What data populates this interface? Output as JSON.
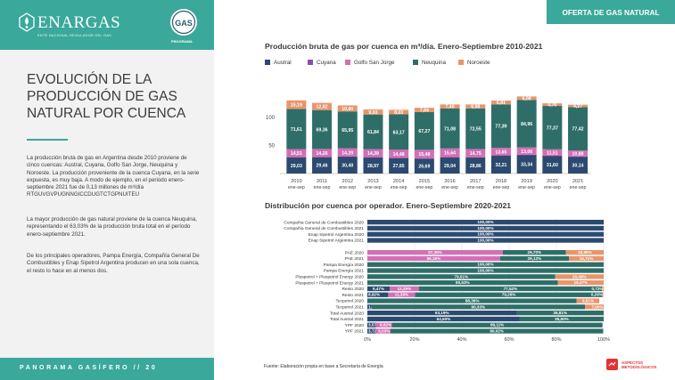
{
  "header": {
    "org_name": "ENARGAS",
    "org_subtitle": "ENTE NACIONAL REGULADOR DEL GAS",
    "seal_text": "GAS",
    "seal_label": "PROGRAMA",
    "section_label": "OFERTA DE GAS NATURAL"
  },
  "left": {
    "title": "EVOLUCIÓN DE LA PRODUCCIÓN DE GAS NATURAL POR CUENCA",
    "paragraphs": [
      "La producción bruta de gas en Argentina desde 2010 proviene de cinco cuencas: Austral, Cuyana, Golfo San Jorge, Neuquina y Noroeste. La producción proveniente de la cuenca Cuyana, en la serie expuesta, es muy baja. A modo de ejemplo, en el periodo enero-septiembre 2021 fue de 0,13 millones de m³/día RTGUVGVPUGNNGICCDUGTCTGPNUITEU",
      "La mayor producción de gas natural proviene de la cuenca Neuquina, representando el 63,03% de la producción bruta total en el período enero-septiembre 2021.",
      "De los principales operadores, Pampa Energía, Compañía General De Combustibles y Enap Sipetrol Argentina producen en una sola cuenca, el resto lo hace en al menos dos."
    ],
    "footer": "PANORAMA GASÍFERO // 20"
  },
  "footer_right": {
    "source": "Fuente: Elaboración propia en base a Secretaría de Energía",
    "help_label": "ASPECTOS METODOLÓGICOS"
  },
  "colors": {
    "teal": "#3aa89a",
    "austral": "#2b4a6f",
    "cuyana": "#8a4fa8",
    "golfo": "#d36fb6",
    "neuquina": "#2f6e68",
    "noroeste": "#e8956c"
  },
  "chart_data": [
    {
      "type": "bar",
      "stacked": true,
      "title": "Producción bruta de gas por cuenca en m³/día. Enero-Septiembre 2010-2021",
      "categories": [
        "2010",
        "2011",
        "2012",
        "2013",
        "2014",
        "2015",
        "2016",
        "2017",
        "2018",
        "2019",
        "2020",
        "2021"
      ],
      "category_sublabel": "ene-sep",
      "y_ticks": [
        "50",
        "100"
      ],
      "ylim": [
        0,
        140
      ],
      "legend_position": "top",
      "series": [
        {
          "name": "Austral",
          "values": [
            29.03,
            29.46,
            30.4,
            28.97,
            27.85,
            26.69,
            29.04,
            28.86,
            32.21,
            33.34,
            31.6,
            30.14
          ],
          "labels": [
            "29,03",
            "29,46",
            "30,40",
            "28,97",
            "27,85",
            "26,69",
            "29,04",
            "28,86",
            "32,21",
            "33,34",
            "31,60",
            "30,14"
          ]
        },
        {
          "name": "Cuyana",
          "values": [
            0.1,
            0.1,
            0.1,
            0.1,
            0.1,
            0.1,
            0.1,
            0.1,
            0.1,
            0.1,
            0.1,
            0.13
          ],
          "labels": []
        },
        {
          "name": "Golfo San Jorge",
          "values": [
            14.51,
            14.26,
            14.29,
            14.39,
            14.48,
            15.48,
            15.64,
            14.75,
            13.65,
            13.06,
            11.51,
            10.88
          ],
          "labels": [
            "14,51",
            "14,26",
            "14,29",
            "14,39",
            "14,48",
            "15,48",
            "15,64",
            "14,75",
            "13,65",
            "13,06",
            "11,51",
            "10,88"
          ]
        },
        {
          "name": "Neuquina",
          "values": [
            71.61,
            69.36,
            65.95,
            61.84,
            63.17,
            67.27,
            71.08,
            72.55,
            77.39,
            84.96,
            77.37,
            77.42
          ],
          "labels": [
            "71,61",
            "69,36",
            "65,95",
            "61,84",
            "63,17",
            "67,27",
            "71,08",
            "72,55",
            "77,39",
            "84,96",
            "77,37",
            "77,42"
          ]
        },
        {
          "name": "Noroeste",
          "values": [
            15.19,
            12.82,
            10.8,
            9.03,
            8.03,
            7.84,
            7.4,
            6.98,
            6.81,
            6.08,
            4.7,
            4.27
          ],
          "labels": [
            "15,19",
            "12,82",
            "10,80",
            "9,03",
            "8,03",
            "7,84",
            "7,40",
            "6,98",
            "6,81",
            "6,08",
            "4,70",
            "4,27"
          ]
        }
      ]
    },
    {
      "type": "bar",
      "orientation": "horizontal",
      "stacked": true,
      "percent": true,
      "title": "Distribución por cuenca por operador. Enero-Septiembre 2020-2021",
      "x_ticks": [
        "0%",
        "20%",
        "40%",
        "60%",
        "80%",
        "100%"
      ],
      "xlim": [
        0,
        100
      ],
      "rows": [
        {
          "label": "Compañía General de Combustibles 2020",
          "segments": [
            {
              "series": "Austral",
              "value": 100,
              "label": "100,00%"
            }
          ]
        },
        {
          "label": "Compañía General de Combustibles 2021",
          "segments": [
            {
              "series": "Austral",
              "value": 100,
              "label": "100,00%"
            }
          ]
        },
        {
          "label": "Enap Sipetrol Argentina 2020",
          "segments": [
            {
              "series": "Austral",
              "value": 100,
              "label": "100,00%"
            }
          ]
        },
        {
          "label": "Enap Sipetrol Argentina 2021",
          "segments": [
            {
              "series": "Austral",
              "value": 100,
              "label": "100,00%"
            }
          ]
        },
        {
          "label": "",
          "segments": []
        },
        {
          "label": "PAE 2020",
          "segments": [
            {
              "series": "Golfo San Jorge",
              "value": 57.35,
              "label": "57,35%"
            },
            {
              "series": "Neuquina",
              "value": 26.7,
              "label": "26,70%"
            },
            {
              "series": "Noroeste",
              "value": 15.95,
              "label": "15,95%"
            }
          ]
        },
        {
          "label": "PAE 2021",
          "segments": [
            {
              "series": "Golfo San Jorge",
              "value": 56.16,
              "label": "56,16%"
            },
            {
              "series": "Neuquina",
              "value": 29.13,
              "label": "29,13%"
            },
            {
              "series": "Noroeste",
              "value": 14.71,
              "label": "14,71%"
            }
          ]
        },
        {
          "label": "Pampa Energía 2020",
          "segments": [
            {
              "series": "Neuquina",
              "value": 100,
              "label": "100,00%"
            }
          ]
        },
        {
          "label": "Pampa Energía 2021",
          "segments": [
            {
              "series": "Neuquina",
              "value": 100,
              "label": "100,00%"
            }
          ]
        },
        {
          "label": "Pluspetrol + Pluspetrol Energy 2020",
          "segments": [
            {
              "series": "Neuquina",
              "value": 79.51,
              "label": "79,51%"
            },
            {
              "series": "Noroeste",
              "value": 20.49,
              "label": "20,49%"
            }
          ]
        },
        {
          "label": "Pluspetrol + Pluspetrol Energy 2021",
          "segments": [
            {
              "series": "Neuquina",
              "value": 80.63,
              "label": "80,63%"
            },
            {
              "series": "Noroeste",
              "value": 19.37,
              "label": "19,37%"
            }
          ]
        },
        {
          "label": "Resto 2020",
          "segments": [
            {
              "series": "Austral",
              "value": 9.47,
              "label": "9,47%"
            },
            {
              "series": "Golfo San Jorge",
              "value": 12.29,
              "label": "12,29%"
            },
            {
              "series": "Neuquina",
              "value": 77.52,
              "label": "77,52%"
            },
            {
              "series": "Noroeste",
              "value": 0.72,
              "label": "0,72%"
            }
          ]
        },
        {
          "label": "Resto 2021",
          "segments": [
            {
              "series": "Austral",
              "value": 8.82,
              "label": "8,82%"
            },
            {
              "series": "Golfo San Jorge",
              "value": 11.39,
              "label": "11,39%"
            },
            {
              "series": "Neuquina",
              "value": 79.26,
              "label": "79,26%"
            },
            {
              "series": "Noroeste",
              "value": 0.29,
              "label": "0,29%"
            }
          ]
        },
        {
          "label": "Tecpetrol 2020",
          "segments": [
            {
              "series": "Austral",
              "value": 0.22,
              "label": "0,22%"
            },
            {
              "series": "Neuquina",
              "value": 88.36,
              "label": "88,36%"
            },
            {
              "series": "Noroeste",
              "value": 9.61,
              "label": "9,61%"
            }
          ]
        },
        {
          "label": "Tecpetrol 2021",
          "segments": [
            {
              "series": "Austral",
              "value": 1.76,
              "label": "1,76%"
            },
            {
              "series": "Neuquina",
              "value": 90.33,
              "label": "90,33%"
            },
            {
              "series": "Noroeste",
              "value": 7.9,
              "label": "7,90%"
            }
          ]
        },
        {
          "label": "Total Austral 2020",
          "segments": [
            {
              "series": "Austral",
              "value": 63.19,
              "label": "63,19%"
            },
            {
              "series": "Neuquina",
              "value": 36.81,
              "label": "36,81%"
            }
          ]
        },
        {
          "label": "Total Austral 2021",
          "segments": [
            {
              "series": "Austral",
              "value": 64.5,
              "label": "64,50%"
            },
            {
              "series": "Neuquina",
              "value": 35.5,
              "label": "35,50%"
            }
          ]
        },
        {
          "label": "YPF 2020",
          "segments": [
            {
              "series": "Austral",
              "value": 3.57,
              "label": "3,57%"
            },
            {
              "series": "Golfo San Jorge",
              "value": 6.82,
              "label": "6,82%"
            },
            {
              "series": "Neuquina",
              "value": 89.11,
              "label": "89,11%"
            }
          ]
        },
        {
          "label": "YPF 2021",
          "segments": [
            {
              "series": "Austral",
              "value": 3.72,
              "label": "3,72%"
            },
            {
              "series": "Golfo San Jorge",
              "value": 6.03,
              "label": "6,03%"
            },
            {
              "series": "Neuquina",
              "value": 90.02,
              "label": "90,02%"
            }
          ]
        }
      ]
    }
  ]
}
